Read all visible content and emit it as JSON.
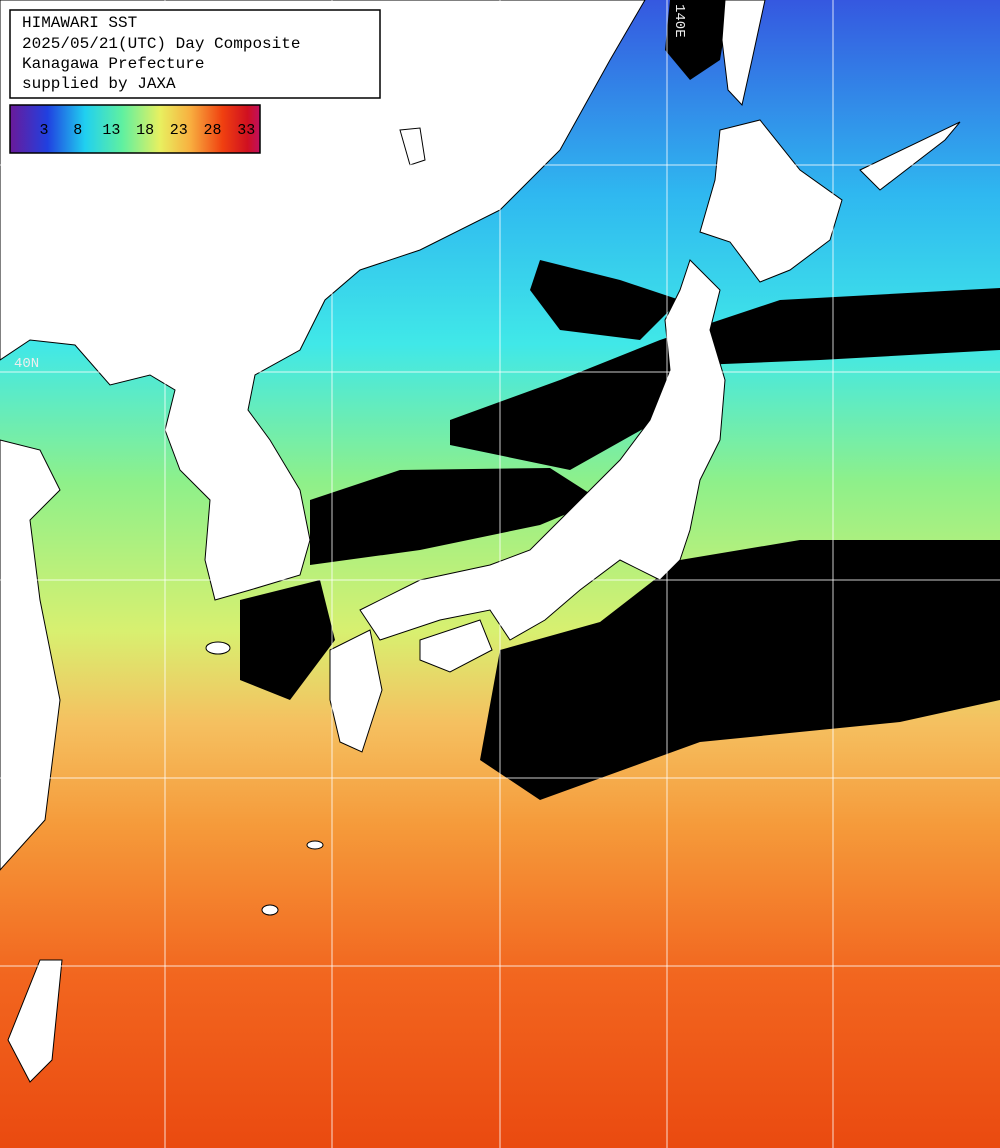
{
  "header": {
    "lines": [
      "HIMAWARI SST",
      "2025/05/21(UTC) Day Composite",
      "Kanagawa Prefecture",
      "supplied by JAXA"
    ]
  },
  "legend": {
    "ticks": [
      3,
      8,
      13,
      18,
      23,
      28,
      33
    ]
  },
  "grid_labels": {
    "latitude": "40N",
    "longitude": "140E"
  }
}
